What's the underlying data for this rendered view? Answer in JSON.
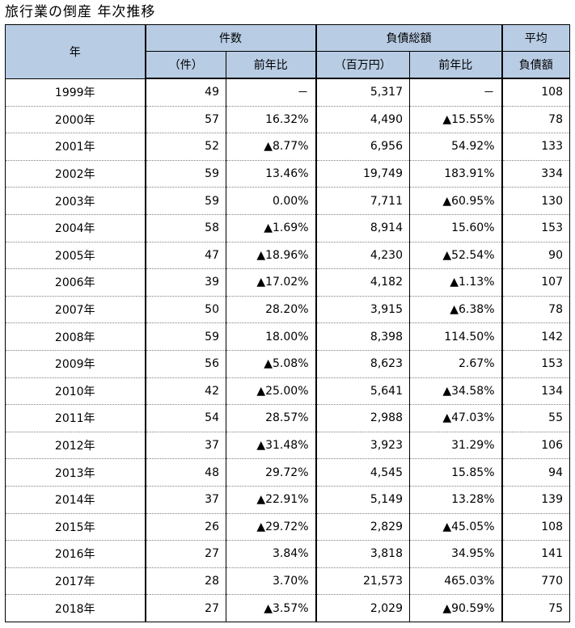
{
  "title": "旅行業の倒産 年次推移",
  "header": {
    "year": "年",
    "count_group": "件数",
    "liability_group": "負債総額",
    "avg_line1": "平均",
    "avg_line2": "負債額",
    "count_unit": "（件）",
    "count_change": "前年比",
    "liability_unit": "（百万円）",
    "liability_change": "前年比"
  },
  "rows": [
    {
      "year": "1999年",
      "count": "49",
      "count_change": "－",
      "liability": "5,317",
      "liability_change": "－",
      "avg": "108"
    },
    {
      "year": "2000年",
      "count": "57",
      "count_change": "16.32%",
      "liability": "4,490",
      "liability_change": "▲15.55%",
      "avg": "78"
    },
    {
      "year": "2001年",
      "count": "52",
      "count_change": "▲8.77%",
      "liability": "6,956",
      "liability_change": "54.92%",
      "avg": "133"
    },
    {
      "year": "2002年",
      "count": "59",
      "count_change": "13.46%",
      "liability": "19,749",
      "liability_change": "183.91%",
      "avg": "334"
    },
    {
      "year": "2003年",
      "count": "59",
      "count_change": "0.00%",
      "liability": "7,711",
      "liability_change": "▲60.95%",
      "avg": "130"
    },
    {
      "year": "2004年",
      "count": "58",
      "count_change": "▲1.69%",
      "liability": "8,914",
      "liability_change": "15.60%",
      "avg": "153"
    },
    {
      "year": "2005年",
      "count": "47",
      "count_change": "▲18.96%",
      "liability": "4,230",
      "liability_change": "▲52.54%",
      "avg": "90"
    },
    {
      "year": "2006年",
      "count": "39",
      "count_change": "▲17.02%",
      "liability": "4,182",
      "liability_change": "▲1.13%",
      "avg": "107"
    },
    {
      "year": "2007年",
      "count": "50",
      "count_change": "28.20%",
      "liability": "3,915",
      "liability_change": "▲6.38%",
      "avg": "78"
    },
    {
      "year": "2008年",
      "count": "59",
      "count_change": "18.00%",
      "liability": "8,398",
      "liability_change": "114.50%",
      "avg": "142"
    },
    {
      "year": "2009年",
      "count": "56",
      "count_change": "▲5.08%",
      "liability": "8,623",
      "liability_change": "2.67%",
      "avg": "153"
    },
    {
      "year": "2010年",
      "count": "42",
      "count_change": "▲25.00%",
      "liability": "5,641",
      "liability_change": "▲34.58%",
      "avg": "134"
    },
    {
      "year": "2011年",
      "count": "54",
      "count_change": "28.57%",
      "liability": "2,988",
      "liability_change": "▲47.03%",
      "avg": "55"
    },
    {
      "year": "2012年",
      "count": "37",
      "count_change": "▲31.48%",
      "liability": "3,923",
      "liability_change": "31.29%",
      "avg": "106"
    },
    {
      "year": "2013年",
      "count": "48",
      "count_change": "29.72%",
      "liability": "4,545",
      "liability_change": "15.85%",
      "avg": "94"
    },
    {
      "year": "2014年",
      "count": "37",
      "count_change": "▲22.91%",
      "liability": "5,149",
      "liability_change": "13.28%",
      "avg": "139"
    },
    {
      "year": "2015年",
      "count": "26",
      "count_change": "▲29.72%",
      "liability": "2,829",
      "liability_change": "▲45.05%",
      "avg": "108"
    },
    {
      "year": "2016年",
      "count": "27",
      "count_change": "3.84%",
      "liability": "3,818",
      "liability_change": "34.95%",
      "avg": "141"
    },
    {
      "year": "2017年",
      "count": "28",
      "count_change": "3.70%",
      "liability": "21,573",
      "liability_change": "465.03%",
      "avg": "770"
    },
    {
      "year": "2018年",
      "count": "27",
      "count_change": "▲3.57%",
      "liability": "2,029",
      "liability_change": "▲90.59%",
      "avg": "75"
    }
  ]
}
